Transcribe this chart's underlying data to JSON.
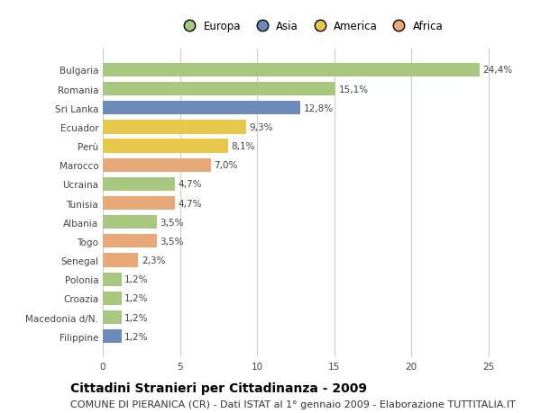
{
  "countries": [
    "Bulgaria",
    "Romania",
    "Sri Lanka",
    "Ecuador",
    "Perù",
    "Marocco",
    "Ucraina",
    "Tunisia",
    "Albania",
    "Togo",
    "Senegal",
    "Polonia",
    "Croazia",
    "Macedonia d/N.",
    "Filippine"
  ],
  "values": [
    24.4,
    15.1,
    12.8,
    9.3,
    8.1,
    7.0,
    4.7,
    4.7,
    3.5,
    3.5,
    2.3,
    1.2,
    1.2,
    1.2,
    1.2
  ],
  "labels": [
    "24,4%",
    "15,1%",
    "12,8%",
    "9,3%",
    "8,1%",
    "7,0%",
    "4,7%",
    "4,7%",
    "3,5%",
    "3,5%",
    "2,3%",
    "1,2%",
    "1,2%",
    "1,2%",
    "1,2%"
  ],
  "continents": [
    "Europa",
    "Europa",
    "Asia",
    "America",
    "America",
    "Africa",
    "Europa",
    "Africa",
    "Europa",
    "Africa",
    "Africa",
    "Europa",
    "Europa",
    "Europa",
    "Asia"
  ],
  "colors": {
    "Europa": "#a8c880",
    "Asia": "#6b8cba",
    "America": "#e8c84a",
    "Africa": "#e8a878"
  },
  "legend_order": [
    "Europa",
    "Asia",
    "America",
    "Africa"
  ],
  "title": "Cittadini Stranieri per Cittadinanza - 2009",
  "subtitle": "COMUNE DI PIERANICA (CR) - Dati ISTAT al 1° gennaio 2009 - Elaborazione TUTTITALIA.IT",
  "xlim": [
    0,
    27
  ],
  "xticks": [
    0,
    5,
    10,
    15,
    20,
    25
  ],
  "bg_color": "#ffffff",
  "grid_color": "#cccccc",
  "bar_height": 0.72,
  "title_fontsize": 10,
  "subtitle_fontsize": 8,
  "label_fontsize": 7.5,
  "tick_fontsize": 7.5,
  "legend_fontsize": 8.5
}
